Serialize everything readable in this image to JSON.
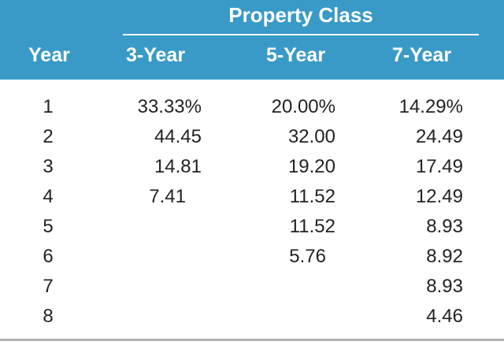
{
  "table": {
    "group_title": "Property Class",
    "headers": {
      "year": "Year",
      "c3": "3-Year",
      "c5": "5-Year",
      "c7": "7-Year"
    },
    "rows": [
      {
        "year": "1",
        "c3": "33.33%",
        "c5": "20.00%",
        "c7": "14.29%"
      },
      {
        "year": "2",
        "c3": "44.45",
        "c5": "32.00",
        "c7": "24.49"
      },
      {
        "year": "3",
        "c3": "14.81",
        "c5": "19.20",
        "c7": "17.49"
      },
      {
        "year": "4",
        "c3": "7.41",
        "c5": "11.52",
        "c7": "12.49"
      },
      {
        "year": "5",
        "c3": "",
        "c5": "11.52",
        "c7": "8.93"
      },
      {
        "year": "6",
        "c3": "",
        "c5": "5.76",
        "c7": "8.92"
      },
      {
        "year": "7",
        "c3": "",
        "c5": "",
        "c7": "8.93"
      },
      {
        "year": "8",
        "c3": "",
        "c5": "",
        "c7": "4.46"
      }
    ]
  },
  "colors": {
    "header_bg": "#3a9ac7",
    "header_text": "#ffffff",
    "body_text": "#222222",
    "rule": "#b0b0b0"
  }
}
